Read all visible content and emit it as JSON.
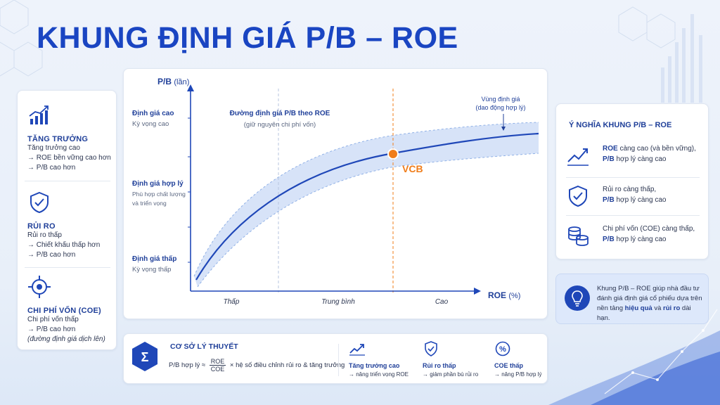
{
  "title": "KHUNG ĐỊNH GIÁ P/B – ROE",
  "left_panel": {
    "growth": {
      "icon": "growth-chart-icon",
      "heading": "TĂNG TRƯỞNG",
      "lines": [
        "Tăng trưởng cao",
        "→ ROE bền vững cao hơn",
        "→ P/B cao hơn"
      ]
    },
    "risk": {
      "icon": "shield-check-icon",
      "heading": "RỦI RO",
      "lines": [
        "Rủi ro thấp",
        "→ Chiết khấu thấp hơn",
        "→ P/B cao hơn"
      ]
    },
    "coe": {
      "icon": "target-icon",
      "heading": "CHI PHÍ VỐN (COE)",
      "lines": [
        "Chi phí vốn thấp",
        "→ P/B cao hơn"
      ],
      "note": "(đường định giá dịch lên)"
    }
  },
  "chart": {
    "y_axis_label": "P/B",
    "y_axis_unit": "(lần)",
    "x_axis_label": "ROE",
    "x_axis_unit": "(%)",
    "y_levels": [
      {
        "title": "Định giá cao",
        "sub": [
          "Kỳ vọng cao"
        ]
      },
      {
        "title": "Định giá hợp lý",
        "sub": [
          "Phù hợp chất lượng",
          "và triển vọng"
        ]
      },
      {
        "title": "Định giá thấp",
        "sub": [
          "Kỳ vọng thấp"
        ]
      }
    ],
    "x_zones": [
      "Thấp",
      "Trung bình",
      "Cao"
    ],
    "curve_label": "Đường định giá P/B theo ROE",
    "curve_sub": "(giữ nguyên chi phí vốn)",
    "band_label": "Vùng định giá",
    "band_sub": "(dao động hợp lý)",
    "point_label": "VCB",
    "colors": {
      "curve": "#1f47b8",
      "band": "#c9daf6",
      "point": "#f07d1a"
    }
  },
  "right_panel": {
    "heading": "Ý NGHĨA KHUNG P/B – ROE",
    "items": [
      {
        "icon": "trend-up-icon",
        "bold1": "ROE",
        "rest1": " càng cao (và bền vững),",
        "bold2": "P/B",
        "rest2": " hợp lý càng cao"
      },
      {
        "icon": "shield-check-icon",
        "text1": "Rủi ro càng thấp,",
        "bold2": "P/B",
        "rest2": " hợp lý càng cao"
      },
      {
        "icon": "coins-icon",
        "text1": "Chi phí vốn (COE) càng thấp,",
        "bold2": "P/B",
        "rest2": " hợp lý càng cao"
      }
    ]
  },
  "info": {
    "icon": "lightbulb-icon",
    "t1": "Khung P/B – ROE giúp nhà đầu tư đánh giá định giá cổ phiếu dựa trên nền tảng ",
    "b1": "hiệu quả",
    "t2": " và ",
    "b2": "rủi ro",
    "t3": " dài hạn."
  },
  "bottom": {
    "icon": "sigma-icon",
    "heading": "CƠ SỞ LÝ THUYẾT",
    "formula_left": "P/B hợp lý ≈",
    "num": "ROE",
    "den": "COE",
    "formula_right": "× hệ số điều chỉnh rủi ro & tăng trưởng",
    "items": [
      {
        "icon": "trend-up-icon",
        "h": "Tăng trưởng cao",
        "s": "→ nâng triển vọng ROE"
      },
      {
        "icon": "shield-check-icon",
        "h": "Rủi ro thấp",
        "s": "→ giảm phần bù rủi ro"
      },
      {
        "icon": "percent-icon",
        "h": "COE thấp",
        "s": "→ nâng P/B hợp lý"
      }
    ]
  }
}
